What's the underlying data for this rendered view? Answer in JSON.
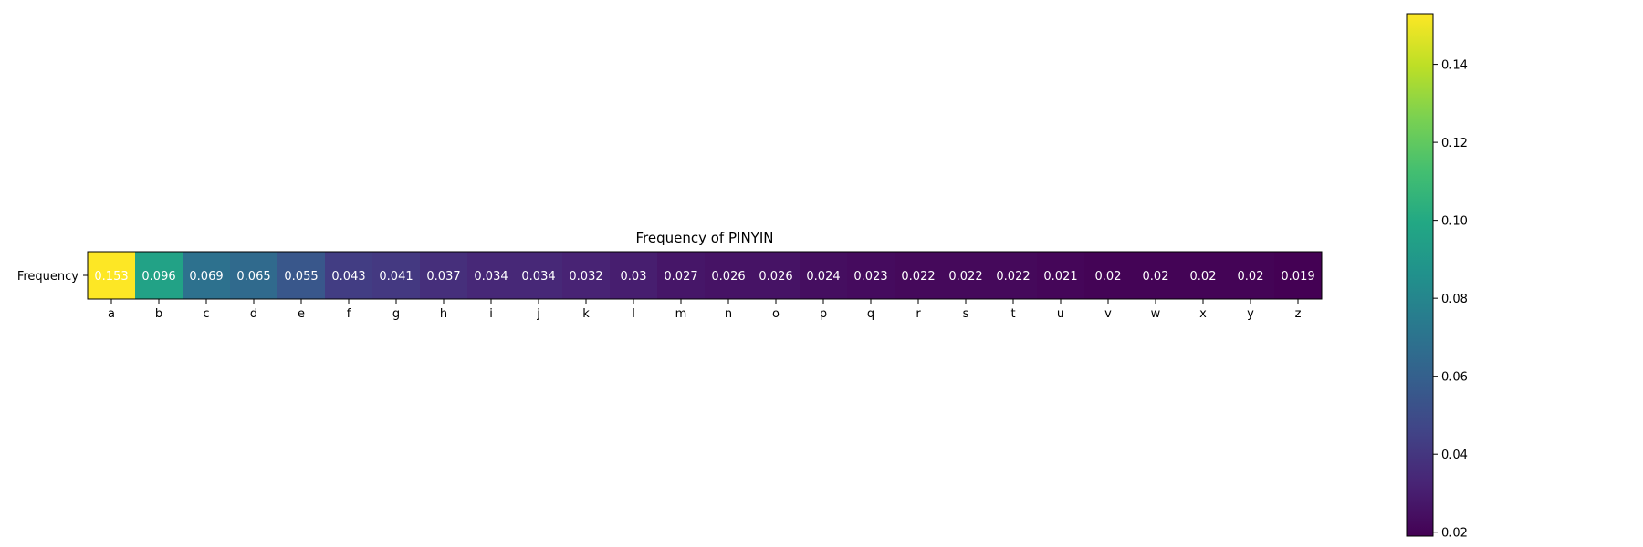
{
  "chart_data": {
    "type": "heatmap",
    "title": "Frequency of PINYIN",
    "row_labels": [
      "Frequency"
    ],
    "categories": [
      "a",
      "b",
      "c",
      "d",
      "e",
      "f",
      "g",
      "h",
      "i",
      "j",
      "k",
      "l",
      "m",
      "n",
      "o",
      "p",
      "q",
      "r",
      "s",
      "t",
      "u",
      "v",
      "w",
      "x",
      "y",
      "z"
    ],
    "values": [
      0.153,
      0.096,
      0.069,
      0.065,
      0.055,
      0.043,
      0.041,
      0.037,
      0.034,
      0.034,
      0.032,
      0.03,
      0.027,
      0.026,
      0.026,
      0.024,
      0.023,
      0.022,
      0.022,
      0.022,
      0.021,
      0.02,
      0.02,
      0.02,
      0.02,
      0.019
    ],
    "colormap": "viridis",
    "colorbar": {
      "min": 0.019,
      "max": 0.153,
      "ticks": [
        0.02,
        0.04,
        0.06,
        0.08,
        0.1,
        0.12,
        0.14
      ],
      "tick_labels": [
        "0.02",
        "0.04",
        "0.06",
        "0.08",
        "0.10",
        "0.12",
        "0.14"
      ]
    },
    "cell_text_color": "#ffffff",
    "grid": false
  }
}
